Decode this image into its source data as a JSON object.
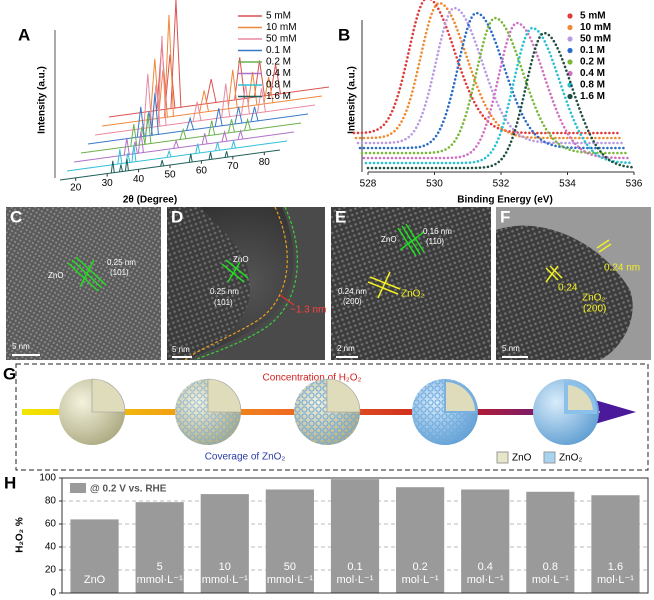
{
  "chart_data": [
    {
      "label": "A",
      "type": "xrd",
      "xlabel": "2θ (Degree)",
      "ylabel": "Intensity (a.u.)",
      "xlim": [
        15,
        85
      ],
      "xticks": [
        20,
        30,
        40,
        50,
        60,
        70,
        80
      ],
      "ylim": [
        0,
        100
      ],
      "peaks": [
        31.8,
        34.4,
        36.3,
        47.5,
        56.6,
        62.9,
        68.0
      ],
      "series": [
        {
          "name": "5 mM",
          "color": "#d9534f",
          "values": [
            55,
            45,
            90,
            20,
            35,
            30,
            25
          ]
        },
        {
          "name": "10 mM",
          "color": "#f0883a",
          "values": [
            50,
            40,
            85,
            18,
            32,
            28,
            22
          ]
        },
        {
          "name": "50 mM",
          "color": "#e88aa0",
          "values": [
            45,
            35,
            75,
            16,
            28,
            25,
            20
          ]
        },
        {
          "name": "0.1 M",
          "color": "#3a78c8",
          "values": [
            25,
            20,
            35,
            10,
            15,
            14,
            12
          ]
        },
        {
          "name": "0.2 M",
          "color": "#6ab04c",
          "values": [
            18,
            15,
            25,
            8,
            12,
            11,
            9
          ]
        },
        {
          "name": "0.4 M",
          "color": "#b070c8",
          "values": [
            14,
            10,
            18,
            6,
            9,
            8,
            7
          ]
        },
        {
          "name": "0.8 M",
          "color": "#30c0d8",
          "values": [
            12,
            8,
            14,
            5,
            8,
            7,
            6
          ]
        },
        {
          "name": "1.6 M",
          "color": "#1f5f5a",
          "values": [
            10,
            6,
            10,
            5,
            7,
            6,
            5
          ]
        }
      ]
    },
    {
      "label": "B",
      "type": "xps",
      "xlabel": "Binding Energy (eV)",
      "ylabel": "Intensity (a.u.)",
      "xlim": [
        528,
        536
      ],
      "xticks": [
        528,
        530,
        532,
        534,
        536
      ],
      "series": [
        {
          "name": "5 mM",
          "color": "#e03a3a",
          "peak": 530.2
        },
        {
          "name": "10 mM",
          "color": "#f08a30",
          "peak": 530.5
        },
        {
          "name": "50 mM",
          "color": "#b89ae0",
          "peak": 530.9
        },
        {
          "name": "0.1 M",
          "color": "#2a6cc8",
          "peak": 531.5
        },
        {
          "name": "0.2 M",
          "color": "#7ab83a",
          "peak": 532.0
        },
        {
          "name": "0.4 M",
          "color": "#d070c0",
          "peak": 532.6
        },
        {
          "name": "0.8 M",
          "color": "#28c0d0",
          "peak": 533.0
        },
        {
          "name": "1.6 M",
          "color": "#1f4f40",
          "peak": 533.3
        }
      ]
    },
    {
      "label": "H",
      "type": "bar",
      "ylabel": "H₂O₂ %",
      "legend": "@ 0.2 V vs. RHE",
      "color": "#9a9a9a",
      "categories": [
        "ZnO",
        "5\nmmol·L⁻¹",
        "10\nmmol·L⁻¹",
        "50\nmmol·L⁻¹",
        "0.1\nmol·L⁻¹",
        "0.2\nmol·L⁻¹",
        "0.4\nmol·L⁻¹",
        "0.8\nmol·L⁻¹",
        "1.6\nmol·L⁻¹"
      ],
      "values": [
        64,
        79,
        86,
        90,
        99,
        92,
        90,
        88,
        85
      ],
      "ylim": [
        0,
        100
      ],
      "yticks": [
        0,
        20,
        40,
        60,
        80,
        100
      ],
      "grid": true
    }
  ],
  "images": [
    {
      "label": "C",
      "texts": [
        "ZnO",
        "0.25 nm",
        "(101)"
      ],
      "scale": "5 nm"
    },
    {
      "label": "D",
      "texts": [
        "ZnO",
        "0.25 nm",
        "(101)",
        "~1.3 nm"
      ],
      "scale": "5 nm"
    },
    {
      "label": "E",
      "texts": [
        "ZnO",
        "0.16 nm",
        "(110)",
        "0.24 nm",
        "(200)",
        "ZnO₂"
      ],
      "scale": "2 nm"
    },
    {
      "label": "F",
      "texts": [
        "0.24 nm",
        "0.24",
        "ZnO₂",
        "(200)"
      ],
      "scale": "5 nm"
    }
  ],
  "schematic": {
    "label": "G",
    "top": "Concentration of H₂O₂",
    "bottom": "Coverage of ZnO₂",
    "legend": [
      "ZnO",
      "ZnO₂"
    ]
  }
}
